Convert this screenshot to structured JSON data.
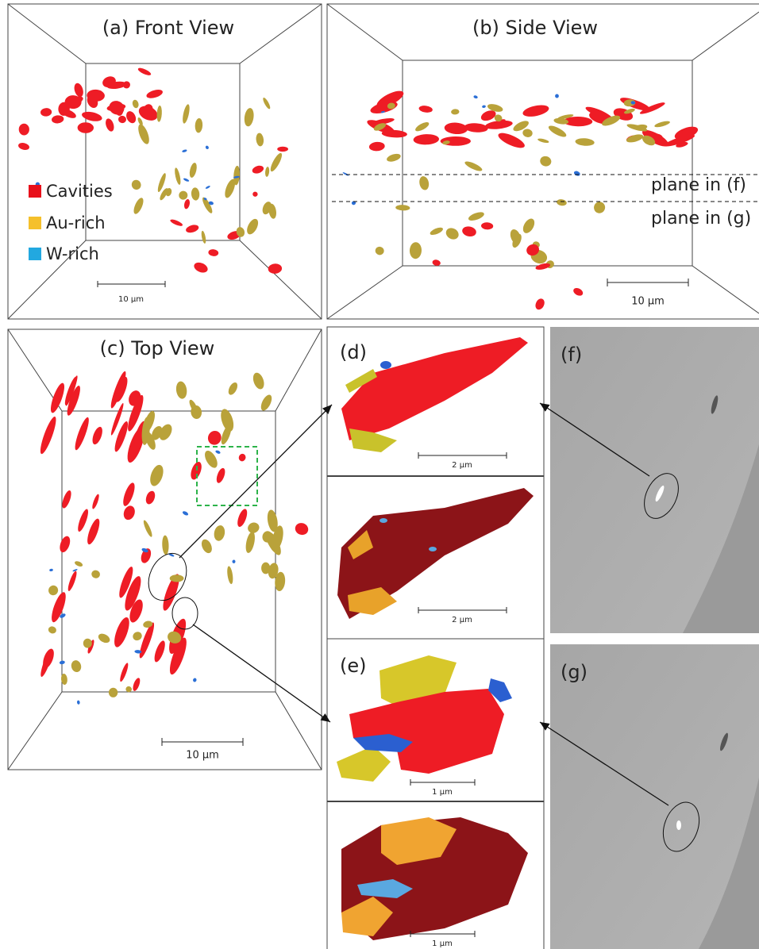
{
  "legend": [
    {
      "name": "Cavities",
      "color": "#e8101b"
    },
    {
      "name": "Au-rich",
      "color": "#f5c02b"
    },
    {
      "name": "W-rich",
      "color": "#22a8e0"
    }
  ],
  "panels": {
    "a": {
      "title": "(a) Front View",
      "scale_bar": "10 µm"
    },
    "b": {
      "title": "(b) Side View",
      "scale_bar": "10 µm",
      "planes": [
        "plane in (f)",
        "plane in (g)"
      ]
    },
    "c": {
      "title": "(c) Top View",
      "scale_bar": "10 µm"
    },
    "d": {
      "label": "(d)",
      "scale_bars": [
        "2 µm",
        "2 µm"
      ]
    },
    "e": {
      "label": "(e)",
      "scale_bars": [
        "1 µm",
        "1 µm"
      ]
    },
    "f": {
      "label": "(f)"
    },
    "g": {
      "label": "(g)"
    }
  }
}
